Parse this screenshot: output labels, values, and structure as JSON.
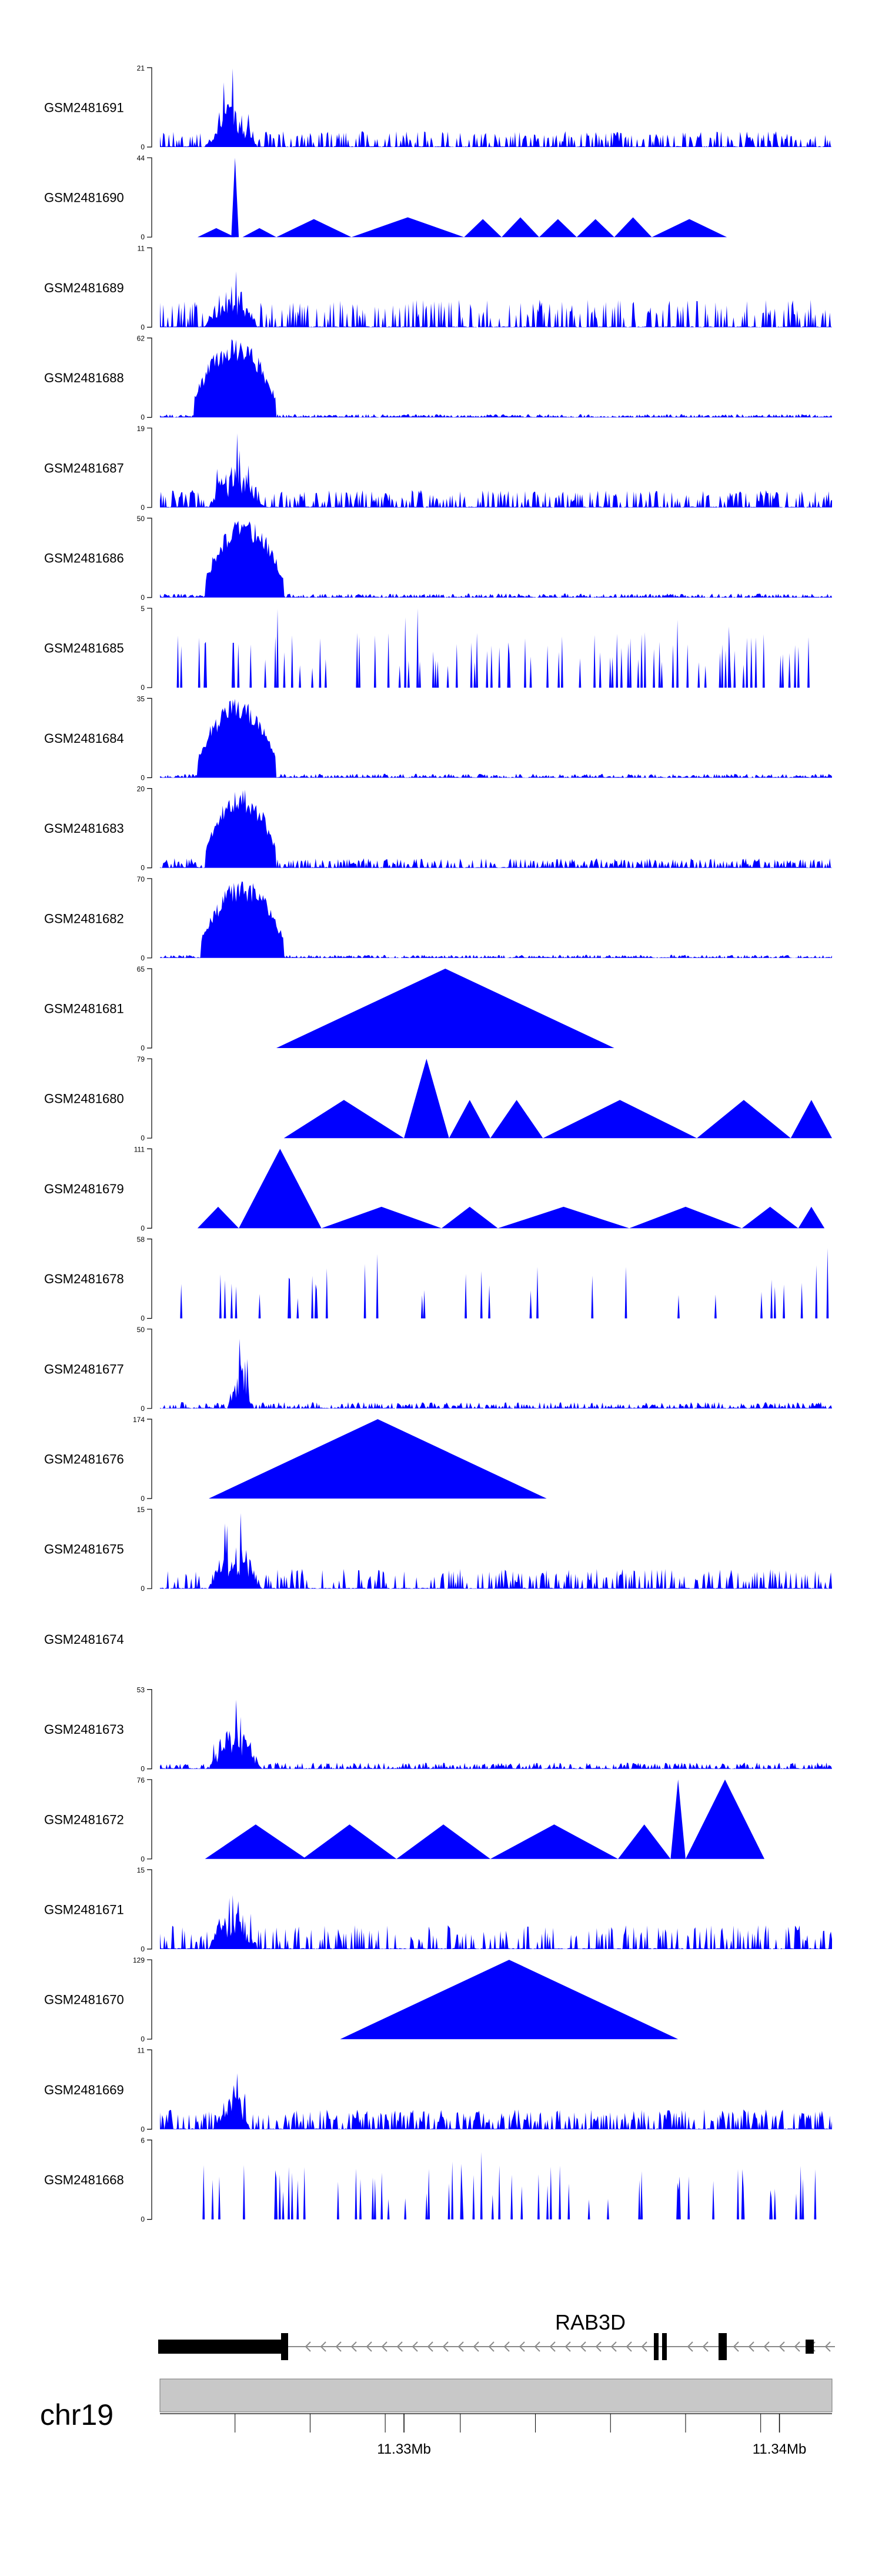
{
  "colors": {
    "track_fill": "#0000ff",
    "chromosome_fill": "#c8c8c8",
    "gene_fill": "#000000",
    "intron": "#8a8a8a"
  },
  "chart_data": {
    "type": "area",
    "xrange": [
      11.3235,
      11.3414
    ],
    "tracks": [
      {
        "name": "GSM2481691",
        "ymax": 21,
        "shape": "peaky",
        "dense": 80,
        "peak": [
          11.3247,
          11.3261
        ],
        "peak_max": 21,
        "background": 0.2,
        "points": [
          [
            11.3418,
            11.34,
            3
          ]
        ]
      },
      {
        "name": "GSM2481690",
        "ymax": 44,
        "shape": "sparse",
        "points": [
          [
            11.3245,
            11.3255,
            5
          ],
          [
            11.3254,
            11.3256,
            44
          ],
          [
            11.3257,
            11.3266,
            5
          ],
          [
            11.3266,
            11.3286,
            10
          ],
          [
            11.3286,
            11.3316,
            11
          ],
          [
            11.3316,
            11.3326,
            10
          ],
          [
            11.3326,
            11.3336,
            11
          ],
          [
            11.3336,
            11.3346,
            10
          ],
          [
            11.3346,
            11.3356,
            10
          ],
          [
            11.3356,
            11.3366,
            11
          ],
          [
            11.3366,
            11.3386,
            10
          ]
        ]
      },
      {
        "name": "GSM2481689",
        "ymax": 11,
        "shape": "peaky",
        "dense": 70,
        "peak": [
          11.3247,
          11.3261
        ],
        "peak_max": 11,
        "background": 0.35,
        "points": []
      },
      {
        "name": "GSM2481688",
        "ymax": 62,
        "shape": "broad",
        "dense": 100,
        "peak": [
          11.3244,
          11.3266
        ],
        "peak_max": 62,
        "background": 0.04,
        "points": []
      },
      {
        "name": "GSM2481687",
        "ymax": 19,
        "shape": "peaky",
        "dense": 90,
        "peak": [
          11.3248,
          11.3263
        ],
        "peak_max": 19,
        "background": 0.22,
        "points": []
      },
      {
        "name": "GSM2481686",
        "ymax": 50,
        "shape": "broad",
        "dense": 90,
        "peak": [
          11.3247,
          11.3268
        ],
        "peak_max": 50,
        "background": 0.05,
        "points": []
      },
      {
        "name": "GSM2481685",
        "ymax": 5,
        "shape": "spiky",
        "dense": 55,
        "peak": [
          11.3235,
          11.3414
        ],
        "peak_max": 5,
        "background": 0.5,
        "points": []
      },
      {
        "name": "GSM2481684",
        "ymax": 35,
        "shape": "broad",
        "dense": 90,
        "peak": [
          11.3245,
          11.3266
        ],
        "peak_max": 35,
        "background": 0.05,
        "points": []
      },
      {
        "name": "GSM2481683",
        "ymax": 20,
        "shape": "broad",
        "dense": 90,
        "peak": [
          11.3247,
          11.3266
        ],
        "peak_max": 20,
        "background": 0.12,
        "points": []
      },
      {
        "name": "GSM2481682",
        "ymax": 70,
        "shape": "broad",
        "dense": 90,
        "peak": [
          11.3246,
          11.3268
        ],
        "peak_max": 70,
        "background": 0.04,
        "points": []
      },
      {
        "name": "GSM2481681",
        "ymax": 65,
        "shape": "sparse",
        "points": [
          [
            11.3266,
            11.3356,
            65
          ]
        ]
      },
      {
        "name": "GSM2481680",
        "ymax": 79,
        "shape": "sparse",
        "points": [
          [
            11.3268,
            11.33,
            38
          ],
          [
            11.33,
            11.3312,
            79
          ],
          [
            11.3312,
            11.3323,
            38
          ],
          [
            11.3323,
            11.3337,
            38
          ],
          [
            11.3337,
            11.3378,
            38
          ],
          [
            11.3378,
            11.3403,
            38
          ],
          [
            11.3403,
            11.3414,
            38
          ]
        ]
      },
      {
        "name": "GSM2481679",
        "ymax": 111,
        "shape": "sparse",
        "points": [
          [
            11.3245,
            11.3256,
            30
          ],
          [
            11.3256,
            11.3278,
            111
          ],
          [
            11.3278,
            11.331,
            30
          ],
          [
            11.331,
            11.3325,
            30
          ],
          [
            11.3325,
            11.336,
            30
          ],
          [
            11.336,
            11.339,
            30
          ],
          [
            11.339,
            11.3405,
            30
          ],
          [
            11.3405,
            11.3412,
            30
          ]
        ]
      },
      {
        "name": "GSM2481678",
        "ymax": 58,
        "shape": "spiky",
        "dense": 20,
        "peak": [
          11.3235,
          11.3414
        ],
        "peak_max": 58,
        "background": 0.7,
        "points": []
      },
      {
        "name": "GSM2481677",
        "ymax": 50,
        "shape": "peaky",
        "dense": 90,
        "peak": [
          11.3253,
          11.326
        ],
        "peak_max": 50,
        "background": 0.08,
        "points": []
      },
      {
        "name": "GSM2481676",
        "ymax": 174,
        "shape": "sparse",
        "points": [
          [
            11.3248,
            11.3338,
            174
          ]
        ]
      },
      {
        "name": "GSM2481675",
        "ymax": 15,
        "shape": "peaky",
        "dense": 70,
        "peak": [
          11.3248,
          11.3262
        ],
        "peak_max": 15,
        "background": 0.25,
        "points": []
      },
      {
        "name": "GSM2481674",
        "ymax": null,
        "shape": "empty",
        "points": []
      },
      {
        "name": "GSM2481673",
        "ymax": 53,
        "shape": "peaky",
        "dense": 90,
        "peak": [
          11.3248,
          11.3262
        ],
        "peak_max": 53,
        "background": 0.08,
        "points": []
      },
      {
        "name": "GSM2481672",
        "ymax": 76,
        "shape": "sparse",
        "points": [
          [
            11.3247,
            11.3274,
            33
          ],
          [
            11.3273,
            11.3298,
            33
          ],
          [
            11.3298,
            11.3323,
            33
          ],
          [
            11.3323,
            11.3357,
            33
          ],
          [
            11.3357,
            11.3371,
            33
          ],
          [
            11.3371,
            11.3375,
            76
          ],
          [
            11.3375,
            11.3396,
            76
          ]
        ]
      },
      {
        "name": "GSM2481671",
        "ymax": 15,
        "shape": "peaky",
        "dense": 65,
        "peak": [
          11.3248,
          11.3261
        ],
        "peak_max": 15,
        "background": 0.3,
        "points": []
      },
      {
        "name": "GSM2481670",
        "ymax": 129,
        "shape": "sparse",
        "points": [
          [
            11.3283,
            11.3373,
            129
          ]
        ]
      },
      {
        "name": "GSM2481669",
        "ymax": 11,
        "shape": "peaky",
        "dense": 100,
        "peak": [
          11.325,
          11.3259
        ],
        "peak_max": 11,
        "background": 0.25,
        "points": []
      },
      {
        "name": "GSM2481668",
        "ymax": 6,
        "shape": "spiky",
        "dense": 32,
        "peak": [
          11.3235,
          11.3414
        ],
        "peak_max": 6,
        "background": 0.55,
        "points": []
      }
    ],
    "gene": {
      "name": "RAB3D",
      "chromosome": "chr19",
      "strand": "-"
    },
    "x_ticks": [
      {
        "value": 11.33,
        "label": "11.33Mb"
      },
      {
        "value": 11.34,
        "label": "11.34Mb"
      }
    ],
    "minor_ticks": [
      11.3255,
      11.3275,
      11.3295,
      11.3315,
      11.3335,
      11.3355,
      11.3375,
      11.3395
    ]
  }
}
